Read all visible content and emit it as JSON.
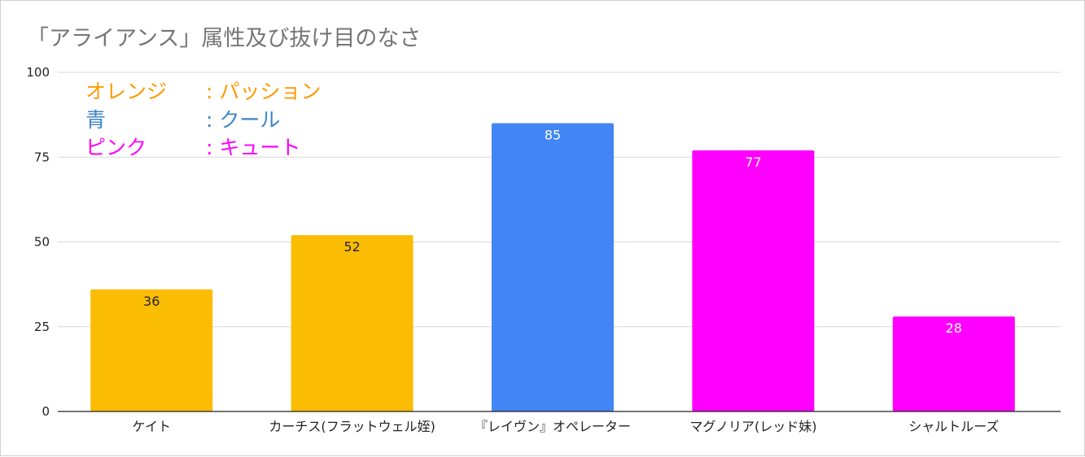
{
  "chart_data": {
    "type": "bar",
    "title": "「アライアンス」属性及び抜け目のなさ",
    "xlabel": "",
    "ylabel": "",
    "ylim": [
      0,
      100
    ],
    "yticks": [
      0,
      25,
      50,
      75,
      100
    ],
    "grid": true,
    "categories": [
      "ケイト",
      "カーチス(フラットウェル姪)",
      "『レイヴン』オペレーター",
      "マグノリア(レッド妹)",
      "シャルトルーズ"
    ],
    "values": [
      36,
      52,
      85,
      77,
      28
    ],
    "bar_colors": [
      "#fbbc04",
      "#fbbc04",
      "#4285f4",
      "#ff00ff",
      "#ff00ff"
    ],
    "data_label_colors": [
      "#222222",
      "#222222",
      "#ffffff",
      "#ffffff",
      "#ffffff"
    ]
  },
  "annotations": [
    {
      "key": "オレンジ",
      "value": ": パッション",
      "color": "#ff9900"
    },
    {
      "key": "青",
      "value": ": クール",
      "color": "#3d85c6"
    },
    {
      "key": "ピンク",
      "value": ": キュート",
      "color": "#ff00ff"
    }
  ]
}
